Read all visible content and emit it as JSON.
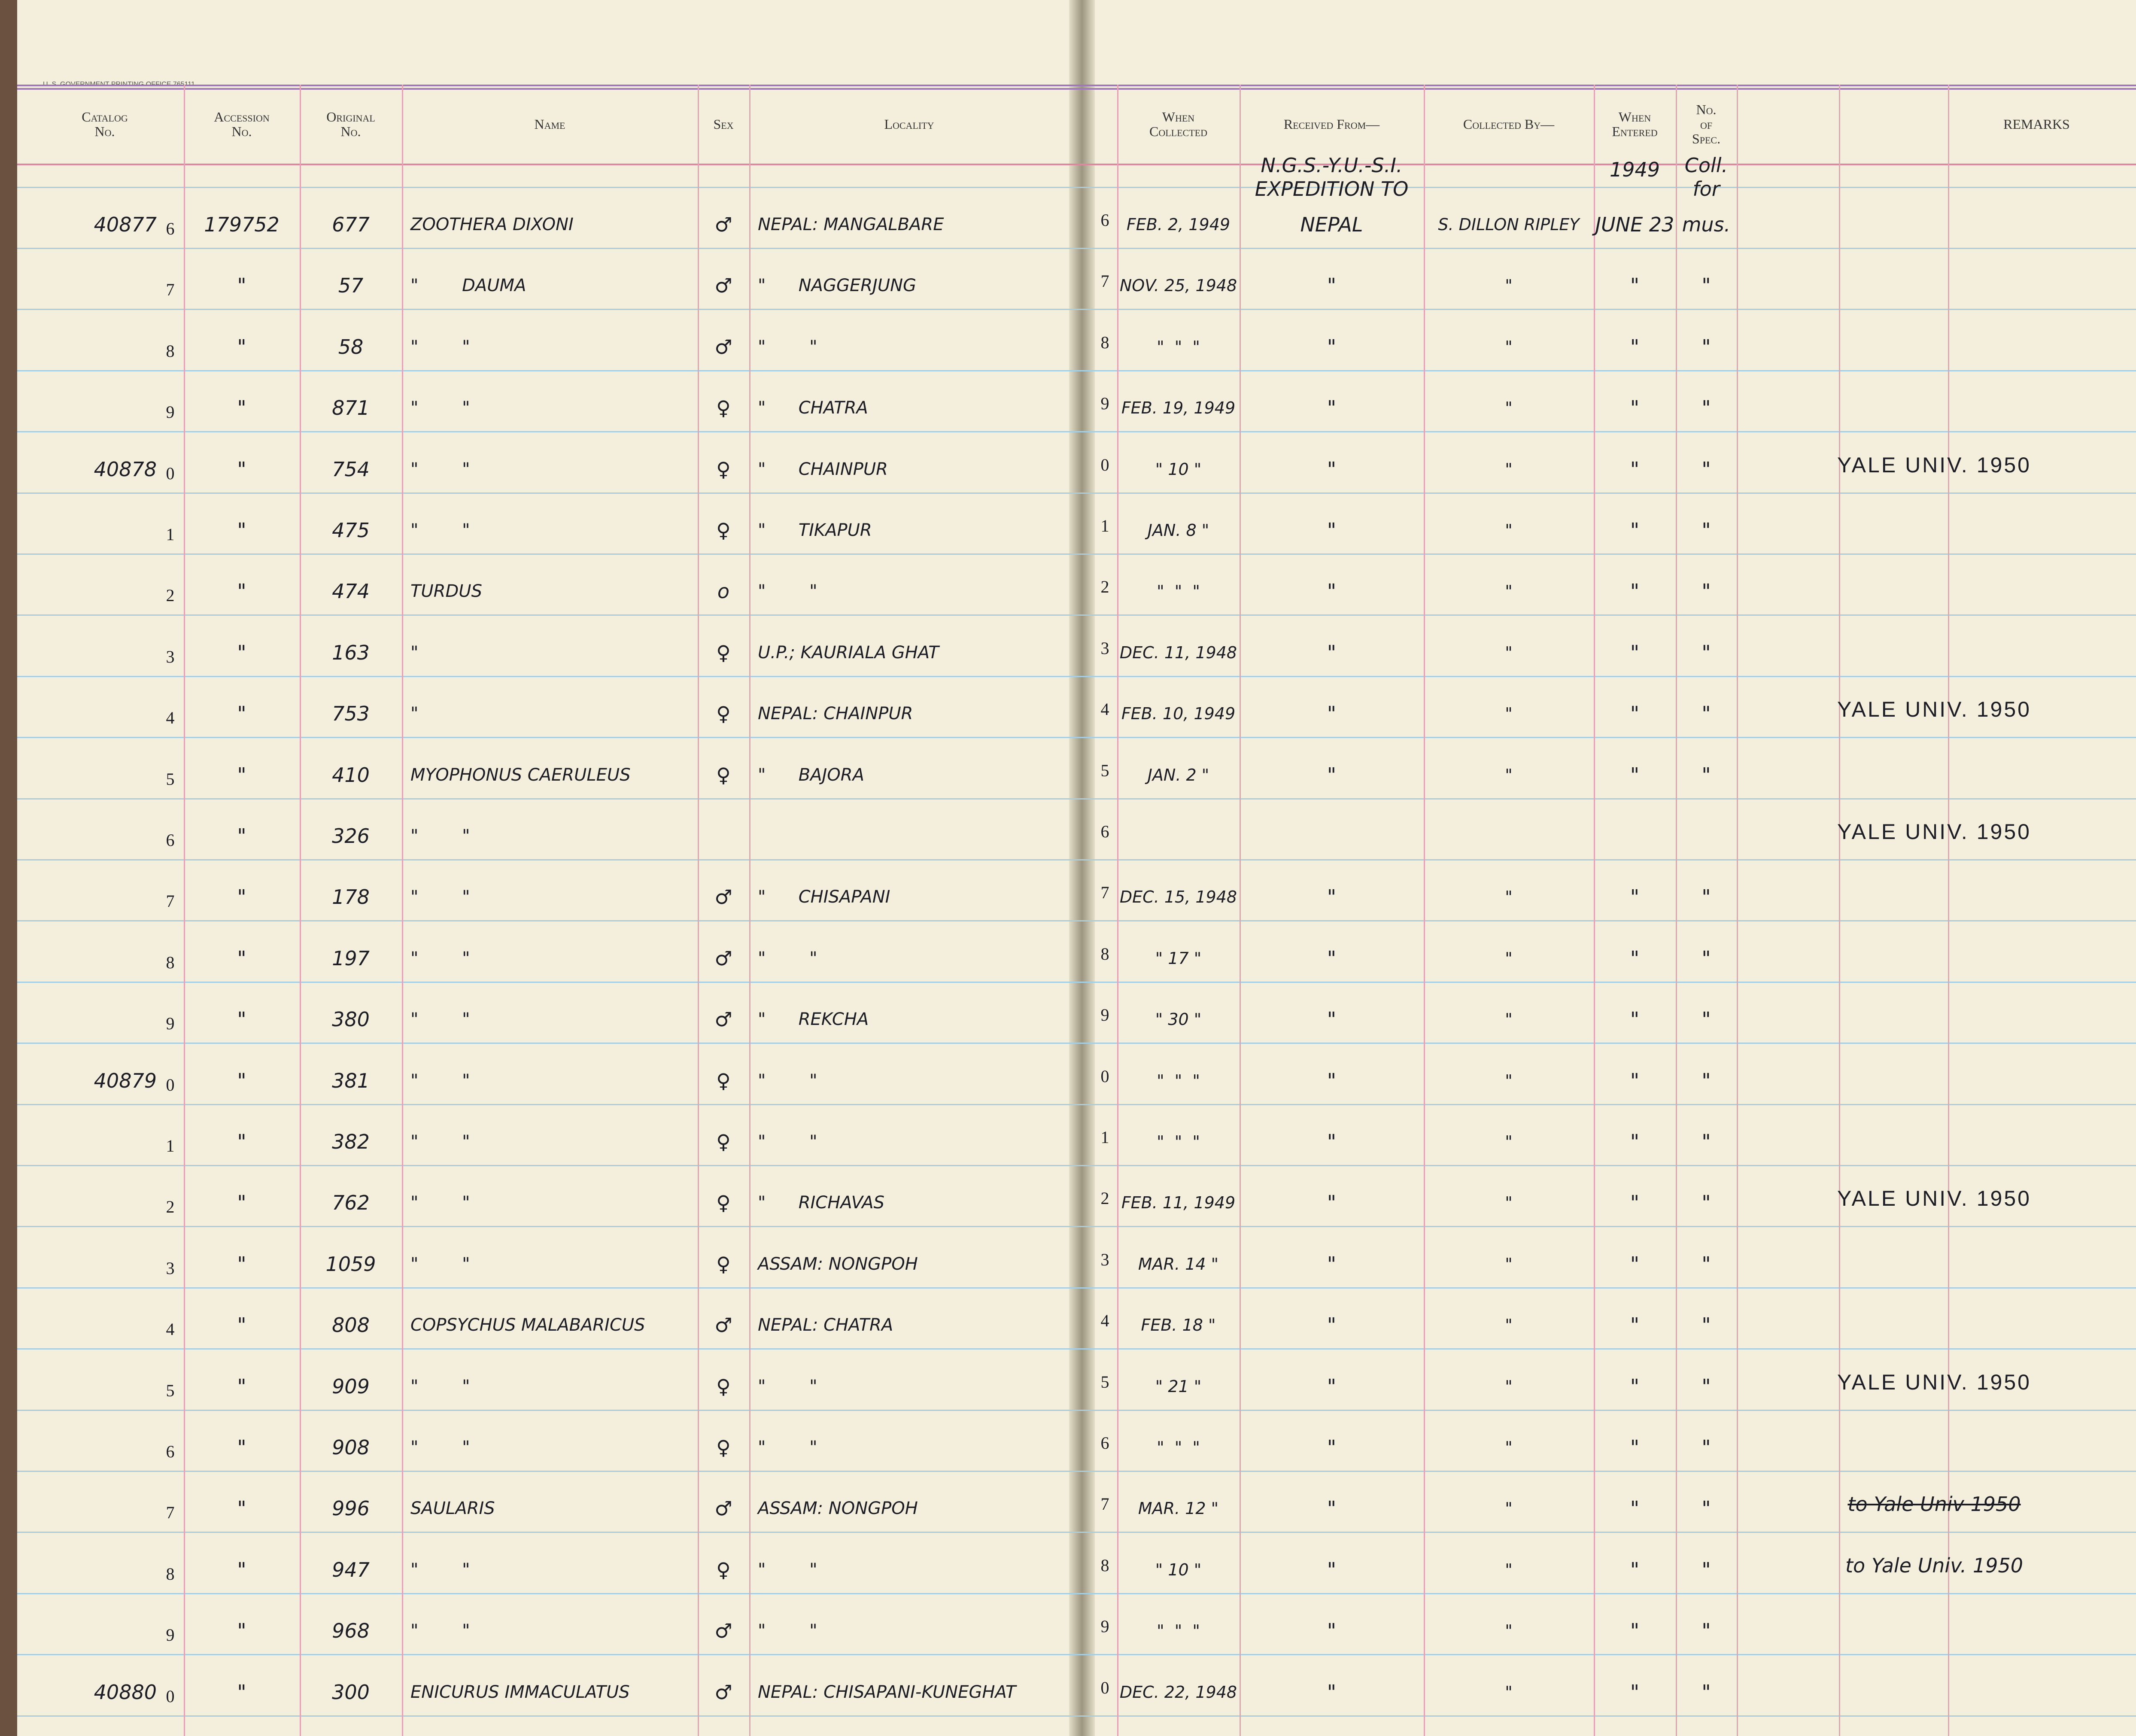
{
  "header": {
    "printer": "U. S. GOVERNMENT PRINTING OFFICE 765111"
  },
  "columns": [
    [
      "Catalog",
      "No."
    ],
    [
      "Accession",
      "No."
    ],
    [
      "Original",
      "No."
    ],
    [
      "Name"
    ],
    [
      "Sex"
    ],
    [
      "Locality"
    ],
    [
      "When",
      "Collected"
    ],
    [
      "Received From—"
    ],
    [
      "Collected By—"
    ],
    [
      "When",
      "Entered"
    ],
    [
      "No.",
      "of",
      "Spec."
    ],
    [
      "REMARKS"
    ]
  ],
  "header_row": {
    "received": [
      "N.G.S.-Y.U.-S.I.",
      "EXPEDITION TO"
    ],
    "entered": "1949",
    "spec": [
      "Coll.",
      "for"
    ]
  },
  "rows": [
    {
      "catalog": "40877",
      "digit": "6",
      "accession": "179752",
      "original": "677",
      "name": "ZOOTHERA DIXONI",
      "sex": "♂",
      "locality": "NEPAL: MANGALBARE",
      "collected": "FEB. 2, 1949",
      "received": "NEPAL",
      "collected_by": "S. DILLON RIPLEY",
      "entered": "JUNE 23",
      "spec": "mus."
    },
    {
      "digit": "7",
      "accession": "\"",
      "original": "57",
      "name": "\"        DAUMA",
      "sex": "♂",
      "locality": "\"      NAGGERJUNG",
      "collected": "NOV. 25, 1948",
      "received": "\"",
      "collected_by": "\"",
      "entered": "\"",
      "spec": "\""
    },
    {
      "digit": "8",
      "accession": "\"",
      "original": "58",
      "name": "\"        \"",
      "sex": "♂",
      "locality": "\"        \"",
      "collected": "\"  \"  \"",
      "received": "\"",
      "collected_by": "\"",
      "entered": "\"",
      "spec": "\""
    },
    {
      "digit": "9",
      "accession": "\"",
      "original": "871",
      "name": "\"        \"",
      "sex": "♀",
      "locality": "\"      CHATRA",
      "collected": "FEB. 19, 1949",
      "received": "\"",
      "collected_by": "\"",
      "entered": "\"",
      "spec": "\""
    },
    {
      "catalog": "40878",
      "digit": "0",
      "accession": "\"",
      "original": "754",
      "name": "\"        \"",
      "sex": "♀",
      "locality": "\"      CHAINPUR",
      "collected": "\" 10 \"",
      "received": "\"",
      "collected_by": "\"",
      "entered": "\"",
      "spec": "\"",
      "remarks": "YALE UNIV. 1950"
    },
    {
      "digit": "1",
      "accession": "\"",
      "original": "475",
      "name": "\"        \"",
      "sex": "♀",
      "locality": "\"      TIKAPUR",
      "collected": "JAN. 8 \"",
      "received": "\"",
      "collected_by": "\"",
      "entered": "\"",
      "spec": "\""
    },
    {
      "digit": "2",
      "accession": "\"",
      "original": "474",
      "name": "TURDUS",
      "sex": "o",
      "locality": "\"        \"",
      "collected": "\"  \"  \"",
      "received": "\"",
      "collected_by": "\"",
      "entered": "\"",
      "spec": "\""
    },
    {
      "digit": "3",
      "accession": "\"",
      "original": "163",
      "name": "\"",
      "sex": "♀",
      "locality": "U.P.; KAURIALA GHAT",
      "collected": "DEC. 11, 1948",
      "received": "\"",
      "collected_by": "\"",
      "entered": "\"",
      "spec": "\""
    },
    {
      "digit": "4",
      "accession": "\"",
      "original": "753",
      "name": "\"",
      "sex": "♀",
      "locality": "NEPAL: CHAINPUR",
      "collected": "FEB. 10, 1949",
      "received": "\"",
      "collected_by": "\"",
      "entered": "\"",
      "spec": "\"",
      "remarks": "YALE UNIV. 1950"
    },
    {
      "digit": "5",
      "accession": "\"",
      "original": "410",
      "name": "MYOPHONUS CAERULEUS",
      "sex": "♀",
      "locality": "\"      BAJORA",
      "collected": "JAN. 2 \"",
      "received": "\"",
      "collected_by": "\"",
      "entered": "\"",
      "spec": "\""
    },
    {
      "digit": "6",
      "accession": "\"",
      "original": "326",
      "name": "\"        \"",
      "remarks": "YALE UNIV. 1950"
    },
    {
      "digit": "7",
      "accession": "\"",
      "original": "178",
      "name": "\"        \"",
      "sex": "♂",
      "locality": "\"      CHISAPANI",
      "collected": "DEC. 15, 1948",
      "received": "\"",
      "collected_by": "\"",
      "entered": "\"",
      "spec": "\""
    },
    {
      "digit": "8",
      "accession": "\"",
      "original": "197",
      "name": "\"        \"",
      "sex": "♂",
      "locality": "\"        \"",
      "collected": "\" 17 \"",
      "received": "\"",
      "collected_by": "\"",
      "entered": "\"",
      "spec": "\""
    },
    {
      "digit": "9",
      "accession": "\"",
      "original": "380",
      "name": "\"        \"",
      "sex": "♂",
      "locality": "\"      REKCHA",
      "collected": "\" 30 \"",
      "received": "\"",
      "collected_by": "\"",
      "entered": "\"",
      "spec": "\""
    },
    {
      "catalog": "40879",
      "digit": "0",
      "accession": "\"",
      "original": "381",
      "name": "\"        \"",
      "sex": "♀",
      "locality": "\"        \"",
      "collected": "\"  \"  \"",
      "received": "\"",
      "collected_by": "\"",
      "entered": "\"",
      "spec": "\""
    },
    {
      "digit": "1",
      "accession": "\"",
      "original": "382",
      "name": "\"        \"",
      "sex": "♀",
      "locality": "\"        \"",
      "collected": "\"  \"  \"",
      "received": "\"",
      "collected_by": "\"",
      "entered": "\"",
      "spec": "\""
    },
    {
      "digit": "2",
      "accession": "\"",
      "original": "762",
      "name": "\"        \"",
      "sex": "♀",
      "locality": "\"      RICHAVAS",
      "collected": "FEB. 11, 1949",
      "received": "\"",
      "collected_by": "\"",
      "entered": "\"",
      "spec": "\"",
      "remarks": "YALE UNIV. 1950"
    },
    {
      "digit": "3",
      "accession": "\"",
      "original": "1059",
      "name": "\"        \"",
      "sex": "♀",
      "locality": "ASSAM: NONGPOH",
      "collected": "MAR. 14 \"",
      "received": "\"",
      "collected_by": "\"",
      "entered": "\"",
      "spec": "\""
    },
    {
      "digit": "4",
      "accession": "\"",
      "original": "808",
      "name": "COPSYCHUS MALABARICUS",
      "sex": "♂",
      "locality": "NEPAL: CHATRA",
      "collected": "FEB. 18 \"",
      "received": "\"",
      "collected_by": "\"",
      "entered": "\"",
      "spec": "\""
    },
    {
      "digit": "5",
      "accession": "\"",
      "original": "909",
      "name": "\"        \"",
      "sex": "♀",
      "locality": "\"        \"",
      "collected": "\" 21 \"",
      "received": "\"",
      "collected_by": "\"",
      "entered": "\"",
      "spec": "\"",
      "remarks": "YALE UNIV. 1950"
    },
    {
      "digit": "6",
      "accession": "\"",
      "original": "908",
      "name": "\"        \"",
      "sex": "♀",
      "locality": "\"        \"",
      "collected": "\"  \"  \"",
      "received": "\"",
      "collected_by": "\"",
      "entered": "\"",
      "spec": "\""
    },
    {
      "digit": "7",
      "accession": "\"",
      "original": "996",
      "name": "SAULARIS",
      "sex": "♂",
      "locality": "ASSAM: NONGPOH",
      "collected": "MAR. 12 \"",
      "received": "\"",
      "collected_by": "\"",
      "entered": "\"",
      "spec": "\"",
      "remarks": "to Yale Univ 1950",
      "remarks_struck": true
    },
    {
      "digit": "8",
      "accession": "\"",
      "original": "947",
      "name": "\"        \"",
      "sex": "♀",
      "locality": "\"        \"",
      "collected": "\" 10 \"",
      "received": "\"",
      "collected_by": "\"",
      "entered": "\"",
      "spec": "\"",
      "remarks": "to Yale Univ. 1950"
    },
    {
      "digit": "9",
      "accession": "\"",
      "original": "968",
      "name": "\"        \"",
      "sex": "♂",
      "locality": "\"        \"",
      "collected": "\"  \"  \"",
      "received": "\"",
      "collected_by": "\"",
      "entered": "\"",
      "spec": "\""
    },
    {
      "catalog": "40880",
      "digit": "0",
      "accession": "\"",
      "original": "300",
      "name": "ENICURUS IMMACULATUS",
      "sex": "♂",
      "locality": "NEPAL: CHISAPANI-KUNEGHAT",
      "collected": "DEC. 22, 1948",
      "received": "\"",
      "collected_by": "\"",
      "entered": "\"",
      "spec": "\""
    }
  ]
}
